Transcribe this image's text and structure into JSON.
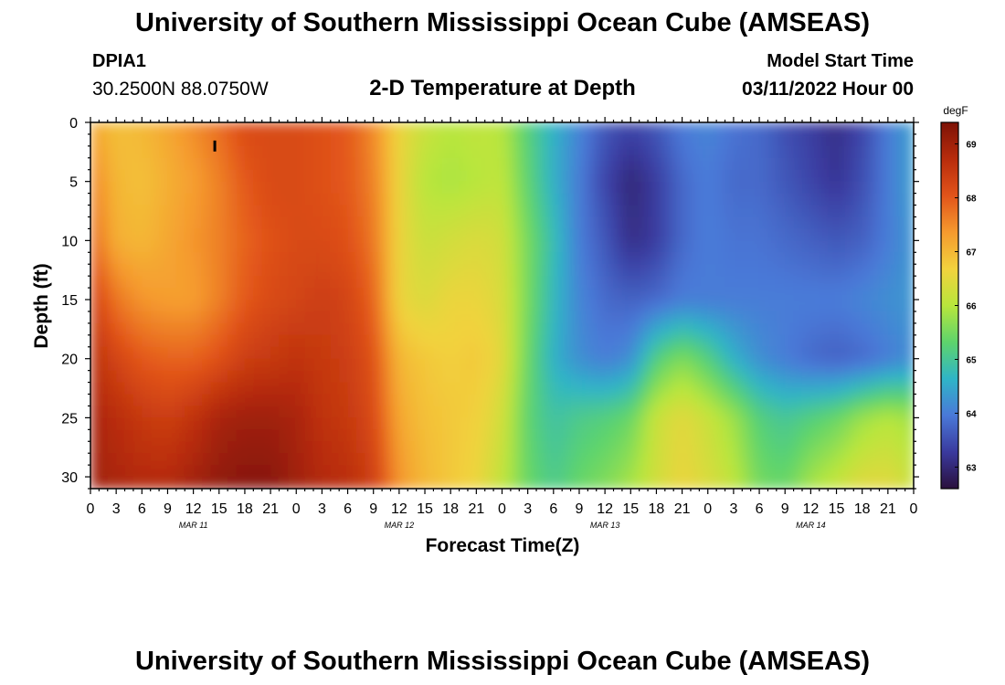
{
  "title": "University of Southern Mississippi Ocean Cube (AMSEAS)",
  "footer_title": "University of Southern Mississippi Ocean Cube (AMSEAS)",
  "station": {
    "id": "DPIA1",
    "coords": "30.2500N  88.0750W"
  },
  "subtitle": "2-D Temperature at Depth",
  "model_start": {
    "label": "Model Start Time",
    "value": "03/11/2022 Hour 00"
  },
  "chart_data": {
    "type": "heatmap",
    "xlabel": "Forecast Time(Z)",
    "ylabel": "Depth (ft)",
    "x_tick_labels": [
      "0",
      "3",
      "6",
      "9",
      "12",
      "15",
      "18",
      "21",
      "0",
      "3",
      "6",
      "9",
      "12",
      "15",
      "18",
      "21",
      "0",
      "3",
      "6",
      "9",
      "12",
      "15",
      "18",
      "21",
      "0",
      "3",
      "6",
      "9",
      "12",
      "15",
      "18",
      "21",
      "0"
    ],
    "x_range_hours": [
      0,
      96
    ],
    "date_labels": [
      {
        "label": "MAR 11",
        "hour": 12
      },
      {
        "label": "MAR 12",
        "hour": 36
      },
      {
        "label": "MAR 13",
        "hour": 60
      },
      {
        "label": "MAR 14",
        "hour": 84
      }
    ],
    "y_ticks": [
      0,
      5,
      10,
      15,
      20,
      25,
      30
    ],
    "y_range_ft": [
      0,
      31
    ],
    "colorbar": {
      "unit": "degF",
      "ticks": [
        63,
        64,
        65,
        66,
        67,
        68,
        69
      ],
      "range": [
        62.6,
        69.4
      ],
      "colors": [
        "#2a0f3c",
        "#3a3a9e",
        "#4a79d8",
        "#2fb5c7",
        "#5ed46c",
        "#b8e63c",
        "#f2d23d",
        "#f59a2e",
        "#e2541a",
        "#b82c0c",
        "#7d1206"
      ]
    },
    "marker": {
      "hour": 14.5,
      "depth_ft": 2
    },
    "depths_ft": [
      0,
      5,
      10,
      15,
      20,
      25,
      31
    ],
    "hours": [
      0,
      3,
      6,
      9,
      12,
      15,
      18,
      21,
      24,
      27,
      30,
      33,
      36,
      39,
      42,
      45,
      48,
      51,
      54,
      57,
      60,
      63,
      66,
      69,
      72,
      75,
      78,
      81,
      84,
      87,
      90,
      93,
      96
    ],
    "values_degF": [
      [
        67.2,
        66.9,
        67.0,
        67.2,
        67.5,
        67.8,
        68.2,
        68.2,
        68.2,
        68.1,
        68.0,
        67.5,
        66.6,
        66.2,
        66.0,
        66.1,
        66.0,
        65.2,
        64.6,
        64.1,
        63.6,
        63.4,
        63.6,
        64.0,
        64.1,
        63.9,
        63.8,
        63.5,
        63.3,
        63.1,
        63.4,
        64.0,
        64.4
      ],
      [
        67.6,
        67.0,
        66.9,
        67.1,
        67.3,
        67.6,
        68.0,
        68.2,
        68.2,
        68.1,
        68.0,
        67.6,
        66.6,
        66.0,
        65.9,
        66.0,
        66.1,
        65.3,
        64.6,
        64.0,
        63.4,
        63.0,
        63.3,
        63.8,
        64.0,
        63.8,
        63.8,
        63.6,
        63.4,
        63.2,
        63.5,
        64.0,
        64.4
      ],
      [
        67.9,
        67.1,
        67.0,
        67.2,
        67.4,
        67.6,
        67.9,
        68.1,
        68.2,
        68.2,
        68.1,
        67.7,
        66.6,
        66.2,
        66.3,
        66.4,
        66.3,
        65.5,
        64.8,
        64.0,
        63.6,
        63.1,
        63.3,
        63.8,
        64.0,
        63.9,
        63.9,
        63.8,
        63.7,
        63.6,
        63.7,
        64.0,
        64.3
      ],
      [
        68.4,
        67.7,
        67.4,
        67.3,
        67.3,
        67.6,
        68.0,
        68.2,
        68.3,
        68.4,
        68.3,
        67.9,
        66.6,
        66.4,
        66.6,
        66.6,
        66.4,
        65.5,
        64.7,
        64.1,
        63.8,
        63.7,
        63.8,
        64.0,
        64.0,
        64.0,
        64.0,
        64.0,
        64.0,
        64.0,
        64.1,
        64.2,
        64.3
      ],
      [
        68.7,
        68.3,
        68.0,
        67.9,
        67.9,
        68.1,
        68.4,
        68.5,
        68.6,
        68.5,
        68.4,
        68.1,
        67.0,
        66.8,
        66.7,
        66.8,
        66.5,
        65.4,
        64.6,
        64.2,
        64.0,
        64.2,
        65.2,
        65.6,
        65.2,
        64.6,
        64.2,
        64.0,
        63.8,
        63.7,
        63.8,
        64.0,
        64.2
      ],
      [
        68.9,
        68.7,
        68.5,
        68.4,
        68.6,
        68.9,
        69.0,
        69.0,
        68.9,
        68.6,
        68.5,
        68.2,
        67.2,
        66.9,
        66.8,
        66.7,
        66.3,
        65.3,
        64.9,
        65.1,
        65.2,
        65.4,
        66.2,
        66.5,
        66.2,
        65.8,
        65.2,
        65.0,
        65.2,
        65.4,
        65.8,
        66.0,
        65.8
      ],
      [
        69.0,
        68.9,
        68.8,
        68.8,
        69.0,
        69.2,
        69.3,
        69.3,
        69.0,
        68.8,
        68.7,
        68.4,
        67.4,
        67.0,
        66.8,
        66.6,
        66.1,
        65.4,
        65.1,
        65.4,
        65.6,
        65.9,
        66.3,
        66.6,
        66.4,
        66.1,
        65.5,
        65.4,
        65.9,
        66.2,
        66.5,
        66.5,
        66.2
      ]
    ]
  }
}
